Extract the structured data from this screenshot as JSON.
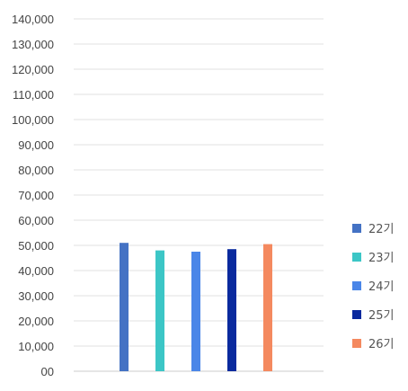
{
  "chart_data": {
    "type": "bar",
    "title": "",
    "xlabel": "",
    "ylabel": "",
    "categories": [
      ""
    ],
    "series": [
      {
        "name": "22기",
        "values": [
          51000
        ],
        "color": "#4472C4"
      },
      {
        "name": "23기",
        "values": [
          48000
        ],
        "color": "#3CC6C6"
      },
      {
        "name": "24기",
        "values": [
          47500
        ],
        "color": "#4A86E8"
      },
      {
        "name": "25기",
        "values": [
          48500
        ],
        "color": "#0A2A9E"
      },
      {
        "name": "26기",
        "values": [
          50500
        ],
        "color": "#F4895F"
      }
    ],
    "ylim": [
      0,
      140000
    ],
    "y_ticks": [
      "00",
      "10,000",
      "20,000",
      "30,000",
      "40,000",
      "50,000",
      "60,000",
      "70,000",
      "80,000",
      "90,000",
      "100,000",
      "110,000",
      "120,000",
      "130,000",
      "140,000"
    ],
    "grid": true,
    "legend_position": "right"
  }
}
